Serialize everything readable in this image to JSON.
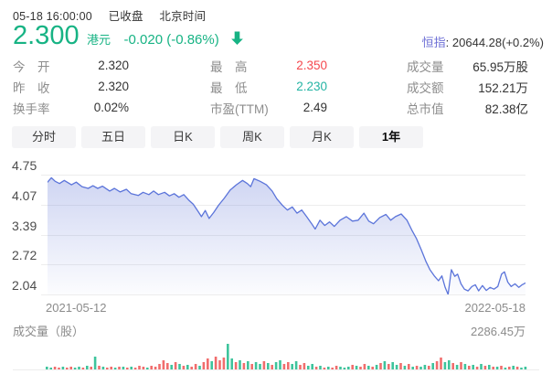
{
  "colors": {
    "green": "#17b384",
    "teal": "#24b4a4",
    "red": "#f5484e",
    "purple": "#6d6fd6",
    "line_blue": "#5b74da",
    "vol_red": "#f16d6d",
    "vol_green": "#3ec49c"
  },
  "header": {
    "datetime": "05-18 16:00:00",
    "market_status": "已收盘",
    "timezone": "北京时间"
  },
  "quote": {
    "price": "2.300",
    "currency": "港元",
    "change": "-0.020 (-0.86%)",
    "direction": "down",
    "index_label": "恒指",
    "index_value": ": 20644.28(+0.2%)"
  },
  "stats": {
    "rows": [
      [
        {
          "label": "今　开",
          "value": "2.320",
          "color": "#333333"
        },
        {
          "label": "最　高",
          "value": "2.350",
          "color": "#f5484e"
        },
        {
          "label": "成交量",
          "value": "65.95万股",
          "color": "#333333"
        }
      ],
      [
        {
          "label": "昨　收",
          "value": "2.320",
          "color": "#333333"
        },
        {
          "label": "最　低",
          "value": "2.230",
          "color": "#24b4a4"
        },
        {
          "label": "成交额",
          "value": "152.21万",
          "color": "#333333"
        }
      ],
      [
        {
          "label": "换手率",
          "value": "0.02%",
          "color": "#333333"
        },
        {
          "label": "市盈(TTM)",
          "value": "2.49",
          "color": "#333333"
        },
        {
          "label": "总市值",
          "value": "82.38亿",
          "color": "#333333"
        }
      ]
    ]
  },
  "tabs": [
    {
      "label": "分时",
      "active": false
    },
    {
      "label": "五日",
      "active": false
    },
    {
      "label": "日K",
      "active": false
    },
    {
      "label": "周K",
      "active": false
    },
    {
      "label": "月K",
      "active": false
    },
    {
      "label": "1年",
      "active": true
    }
  ],
  "chart_data": {
    "type": "area",
    "title": "1-year price history",
    "yticks": [
      4.75,
      4.07,
      3.39,
      2.72,
      2.04
    ],
    "ylim": [
      2.04,
      4.75
    ],
    "x_start_label": "2021-05-12",
    "x_end_label": "2022-05-18",
    "line_color": "#5b74da",
    "fill_color": "#6075d6",
    "grid": true,
    "points": [
      [
        0.0,
        4.58
      ],
      [
        0.008,
        4.68
      ],
      [
        0.016,
        4.6
      ],
      [
        0.025,
        4.55
      ],
      [
        0.035,
        4.62
      ],
      [
        0.05,
        4.52
      ],
      [
        0.06,
        4.58
      ],
      [
        0.072,
        4.48
      ],
      [
        0.085,
        4.44
      ],
      [
        0.095,
        4.5
      ],
      [
        0.105,
        4.44
      ],
      [
        0.115,
        4.49
      ],
      [
        0.13,
        4.38
      ],
      [
        0.14,
        4.44
      ],
      [
        0.152,
        4.36
      ],
      [
        0.165,
        4.42
      ],
      [
        0.175,
        4.32
      ],
      [
        0.19,
        4.28
      ],
      [
        0.2,
        4.35
      ],
      [
        0.212,
        4.3
      ],
      [
        0.222,
        4.38
      ],
      [
        0.232,
        4.3
      ],
      [
        0.245,
        4.35
      ],
      [
        0.255,
        4.27
      ],
      [
        0.265,
        4.32
      ],
      [
        0.275,
        4.24
      ],
      [
        0.285,
        4.3
      ],
      [
        0.295,
        4.18
      ],
      [
        0.305,
        4.08
      ],
      [
        0.315,
        3.92
      ],
      [
        0.322,
        3.8
      ],
      [
        0.33,
        3.94
      ],
      [
        0.338,
        3.76
      ],
      [
        0.348,
        3.9
      ],
      [
        0.358,
        4.06
      ],
      [
        0.37,
        4.22
      ],
      [
        0.382,
        4.4
      ],
      [
        0.395,
        4.52
      ],
      [
        0.408,
        4.62
      ],
      [
        0.418,
        4.55
      ],
      [
        0.425,
        4.48
      ],
      [
        0.432,
        4.66
      ],
      [
        0.445,
        4.6
      ],
      [
        0.458,
        4.52
      ],
      [
        0.47,
        4.38
      ],
      [
        0.48,
        4.2
      ],
      [
        0.492,
        4.05
      ],
      [
        0.502,
        3.95
      ],
      [
        0.512,
        4.02
      ],
      [
        0.522,
        3.88
      ],
      [
        0.532,
        3.95
      ],
      [
        0.542,
        3.8
      ],
      [
        0.552,
        3.65
      ],
      [
        0.56,
        3.52
      ],
      [
        0.57,
        3.72
      ],
      [
        0.58,
        3.6
      ],
      [
        0.59,
        3.68
      ],
      [
        0.6,
        3.58
      ],
      [
        0.612,
        3.72
      ],
      [
        0.625,
        3.8
      ],
      [
        0.638,
        3.7
      ],
      [
        0.65,
        3.72
      ],
      [
        0.662,
        3.88
      ],
      [
        0.672,
        3.7
      ],
      [
        0.682,
        3.64
      ],
      [
        0.695,
        3.78
      ],
      [
        0.708,
        3.85
      ],
      [
        0.718,
        3.72
      ],
      [
        0.728,
        3.8
      ],
      [
        0.74,
        3.86
      ],
      [
        0.752,
        3.72
      ],
      [
        0.762,
        3.5
      ],
      [
        0.772,
        3.3
      ],
      [
        0.782,
        3.05
      ],
      [
        0.792,
        2.78
      ],
      [
        0.8,
        2.6
      ],
      [
        0.81,
        2.45
      ],
      [
        0.818,
        2.35
      ],
      [
        0.825,
        2.46
      ],
      [
        0.832,
        2.2
      ],
      [
        0.838,
        2.04
      ],
      [
        0.845,
        2.6
      ],
      [
        0.852,
        2.45
      ],
      [
        0.858,
        2.5
      ],
      [
        0.865,
        2.28
      ],
      [
        0.872,
        2.16
      ],
      [
        0.88,
        2.12
      ],
      [
        0.888,
        2.22
      ],
      [
        0.895,
        2.26
      ],
      [
        0.902,
        2.12
      ],
      [
        0.91,
        2.24
      ],
      [
        0.918,
        2.13
      ],
      [
        0.926,
        2.2
      ],
      [
        0.934,
        2.16
      ],
      [
        0.942,
        2.22
      ],
      [
        0.95,
        2.5
      ],
      [
        0.956,
        2.55
      ],
      [
        0.963,
        2.32
      ],
      [
        0.97,
        2.22
      ],
      [
        0.978,
        2.28
      ],
      [
        0.986,
        2.2
      ],
      [
        0.993,
        2.26
      ],
      [
        1.0,
        2.3
      ]
    ]
  },
  "volume": {
    "label": "成交量（股）",
    "max_label": "2286.45万",
    "bars": [
      [
        3,
        "g"
      ],
      [
        2,
        "g"
      ],
      [
        3,
        "r"
      ],
      [
        2,
        "r"
      ],
      [
        3,
        "g"
      ],
      [
        2,
        "r"
      ],
      [
        3,
        "r"
      ],
      [
        2,
        "g"
      ],
      [
        3,
        "g"
      ],
      [
        2,
        "r"
      ],
      [
        4,
        "g"
      ],
      [
        3,
        "r"
      ],
      [
        14,
        "g"
      ],
      [
        4,
        "r"
      ],
      [
        3,
        "g"
      ],
      [
        2,
        "r"
      ],
      [
        3,
        "r"
      ],
      [
        2,
        "g"
      ],
      [
        3,
        "r"
      ],
      [
        3,
        "g"
      ],
      [
        2,
        "r"
      ],
      [
        3,
        "g"
      ],
      [
        2,
        "r"
      ],
      [
        4,
        "r"
      ],
      [
        3,
        "r"
      ],
      [
        2,
        "g"
      ],
      [
        4,
        "r"
      ],
      [
        3,
        "r"
      ],
      [
        6,
        "r"
      ],
      [
        10,
        "r"
      ],
      [
        7,
        "r"
      ],
      [
        5,
        "g"
      ],
      [
        8,
        "r"
      ],
      [
        6,
        "g"
      ],
      [
        4,
        "r"
      ],
      [
        5,
        "g"
      ],
      [
        3,
        "r"
      ],
      [
        6,
        "r"
      ],
      [
        4,
        "g"
      ],
      [
        8,
        "r"
      ],
      [
        12,
        "r"
      ],
      [
        9,
        "g"
      ],
      [
        14,
        "r"
      ],
      [
        10,
        "r"
      ],
      [
        13,
        "r"
      ],
      [
        28,
        "g"
      ],
      [
        12,
        "g"
      ],
      [
        8,
        "r"
      ],
      [
        10,
        "g"
      ],
      [
        7,
        "r"
      ],
      [
        9,
        "g"
      ],
      [
        6,
        "r"
      ],
      [
        8,
        "g"
      ],
      [
        6,
        "g"
      ],
      [
        9,
        "r"
      ],
      [
        7,
        "g"
      ],
      [
        5,
        "r"
      ],
      [
        8,
        "g"
      ],
      [
        10,
        "g"
      ],
      [
        6,
        "r"
      ],
      [
        8,
        "r"
      ],
      [
        6,
        "g"
      ],
      [
        9,
        "g"
      ],
      [
        5,
        "r"
      ],
      [
        7,
        "r"
      ],
      [
        4,
        "g"
      ],
      [
        6,
        "g"
      ],
      [
        3,
        "r"
      ],
      [
        4,
        "g"
      ],
      [
        2,
        "r"
      ],
      [
        3,
        "g"
      ],
      [
        2,
        "r"
      ],
      [
        4,
        "r"
      ],
      [
        3,
        "g"
      ],
      [
        2,
        "g"
      ],
      [
        3,
        "g"
      ],
      [
        5,
        "r"
      ],
      [
        4,
        "g"
      ],
      [
        3,
        "r"
      ],
      [
        6,
        "r"
      ],
      [
        4,
        "g"
      ],
      [
        3,
        "r"
      ],
      [
        5,
        "g"
      ],
      [
        7,
        "r"
      ],
      [
        9,
        "g"
      ],
      [
        6,
        "r"
      ],
      [
        8,
        "g"
      ],
      [
        5,
        "g"
      ],
      [
        7,
        "r"
      ],
      [
        4,
        "g"
      ],
      [
        6,
        "r"
      ],
      [
        3,
        "g"
      ],
      [
        4,
        "r"
      ],
      [
        3,
        "g"
      ],
      [
        5,
        "g"
      ],
      [
        4,
        "r"
      ],
      [
        7,
        "g"
      ],
      [
        9,
        "r"
      ],
      [
        13,
        "r"
      ],
      [
        8,
        "g"
      ],
      [
        10,
        "g"
      ],
      [
        7,
        "r"
      ],
      [
        5,
        "g"
      ],
      [
        8,
        "r"
      ],
      [
        6,
        "g"
      ],
      [
        4,
        "r"
      ],
      [
        5,
        "g"
      ],
      [
        3,
        "r"
      ],
      [
        6,
        "g"
      ],
      [
        4,
        "r"
      ],
      [
        5,
        "g"
      ],
      [
        3,
        "r"
      ],
      [
        3,
        "g"
      ],
      [
        4,
        "r"
      ],
      [
        2,
        "g"
      ],
      [
        3,
        "r"
      ],
      [
        4,
        "g"
      ],
      [
        3,
        "r"
      ],
      [
        2,
        "g"
      ],
      [
        3,
        "g"
      ]
    ]
  }
}
